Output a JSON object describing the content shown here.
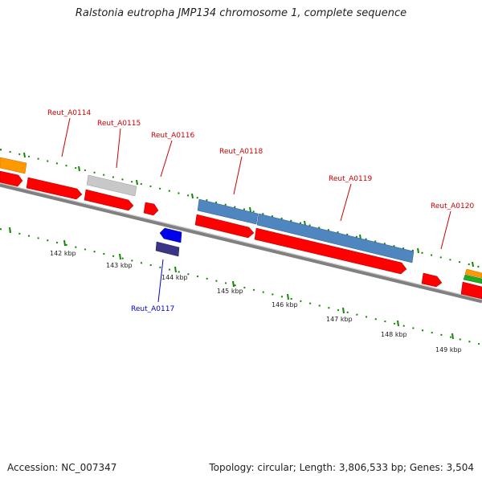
{
  "title": "Ralstonia eutropha JMP134 chromosome 1, complete sequence",
  "footer": {
    "accession": "Accession: NC_007347",
    "summary": "Topology: circular; Length: 3,806,533 bp; Genes: 3,504"
  },
  "colors": {
    "forward_gene": "#ff0000",
    "grey_gene": "#c8c8c8",
    "steel_gene": "#4f86bf",
    "reverse_gene": "#0000ee",
    "reverse_gene_dark": "#3b3585",
    "orange_gene": "#ff9900",
    "green_gene": "#22aa22",
    "tick_green": "#118800",
    "label_red": "#cc0000",
    "label_blue": "#0000cc",
    "backbone": "#808080"
  },
  "scale": {
    "ticks": [
      "142 kbp",
      "143 kbp",
      "144 kbp",
      "145 kbp",
      "146 kbp",
      "147 kbp",
      "148 kbp",
      "149 kbp"
    ]
  },
  "labels": {
    "a0114": "Reut_A0114",
    "a0115": "Reut_A0115",
    "a0116": "Reut_A0116",
    "a0117": "Reut_A0117",
    "a0118": "Reut_A0118",
    "a0119": "Reut_A0119",
    "a0120": "Reut_A0120"
  }
}
